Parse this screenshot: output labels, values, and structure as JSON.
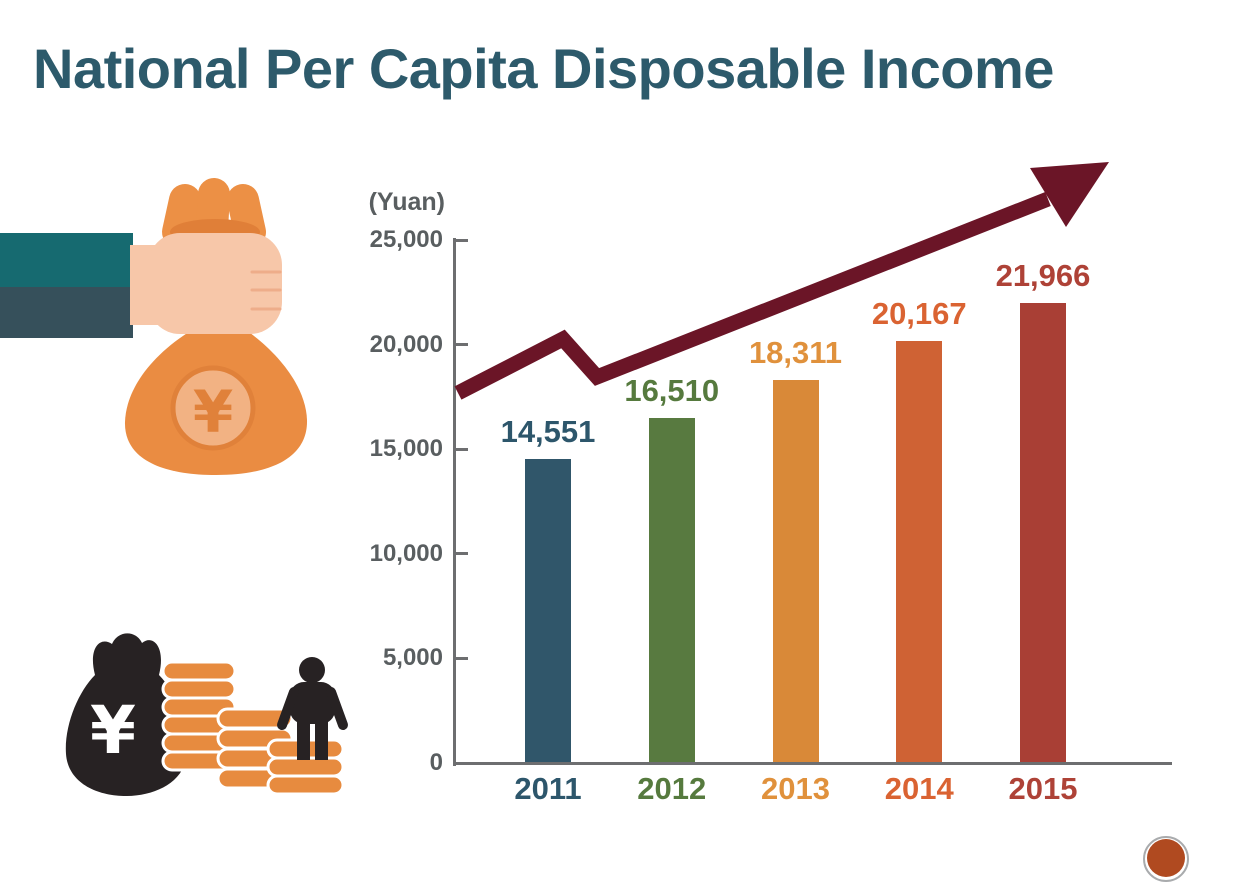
{
  "title": "National Per Capita Disposable Income",
  "chart_data": {
    "type": "bar",
    "title": "National Per Capita Disposable Income",
    "unit_label": "(Yuan)",
    "categories": [
      "2011",
      "2012",
      "2013",
      "2014",
      "2015"
    ],
    "values": [
      14551,
      16510,
      18311,
      20167,
      21966
    ],
    "value_labels": [
      "14,551",
      "16,510",
      "18,311",
      "20,167",
      "21,966"
    ],
    "bar_colors": [
      "#30566a",
      "#587a40",
      "#d98938",
      "#cf6234",
      "#a93f35"
    ],
    "label_colors": [
      "#2d566b",
      "#567a3e",
      "#e0913c",
      "#da6332",
      "#ae4237"
    ],
    "xlabel": "",
    "ylabel": "(Yuan)",
    "ylim": [
      0,
      25000
    ],
    "yticks": [
      0,
      5000,
      10000,
      15000,
      20000,
      25000
    ],
    "ytick_labels": [
      "0",
      "5,000",
      "10,000",
      "15,000",
      "20,000",
      "25,000"
    ],
    "grid": false,
    "legend": false,
    "annotations": [
      {
        "type": "trend-arrow",
        "direction": "up",
        "color": "#6b1527"
      }
    ]
  },
  "icons": {
    "currency_symbol": "¥",
    "hand_money_bag": "hand-holding-money-bag-icon",
    "wealth_steps": "money-bag-coin-stacks-person-icon",
    "trend_arrow": "upward-trend-arrow-icon",
    "partial_logo": "partial-circular-logo"
  },
  "colors": {
    "title": "#2d5a6b",
    "axis_text": "#595e60",
    "axis_line": "#6d6e70",
    "arrow": "#6b1527",
    "bag_orange": "#ea8c42",
    "bag_orange_dark": "#e0813a",
    "coin_face": "#f2b283",
    "hand_skin": "#f7c7a9",
    "sleeve_teal": "#166a70",
    "sleeve_dark": "#36505b",
    "icon_black": "#272223",
    "coin_orange": "#e78b3f"
  }
}
